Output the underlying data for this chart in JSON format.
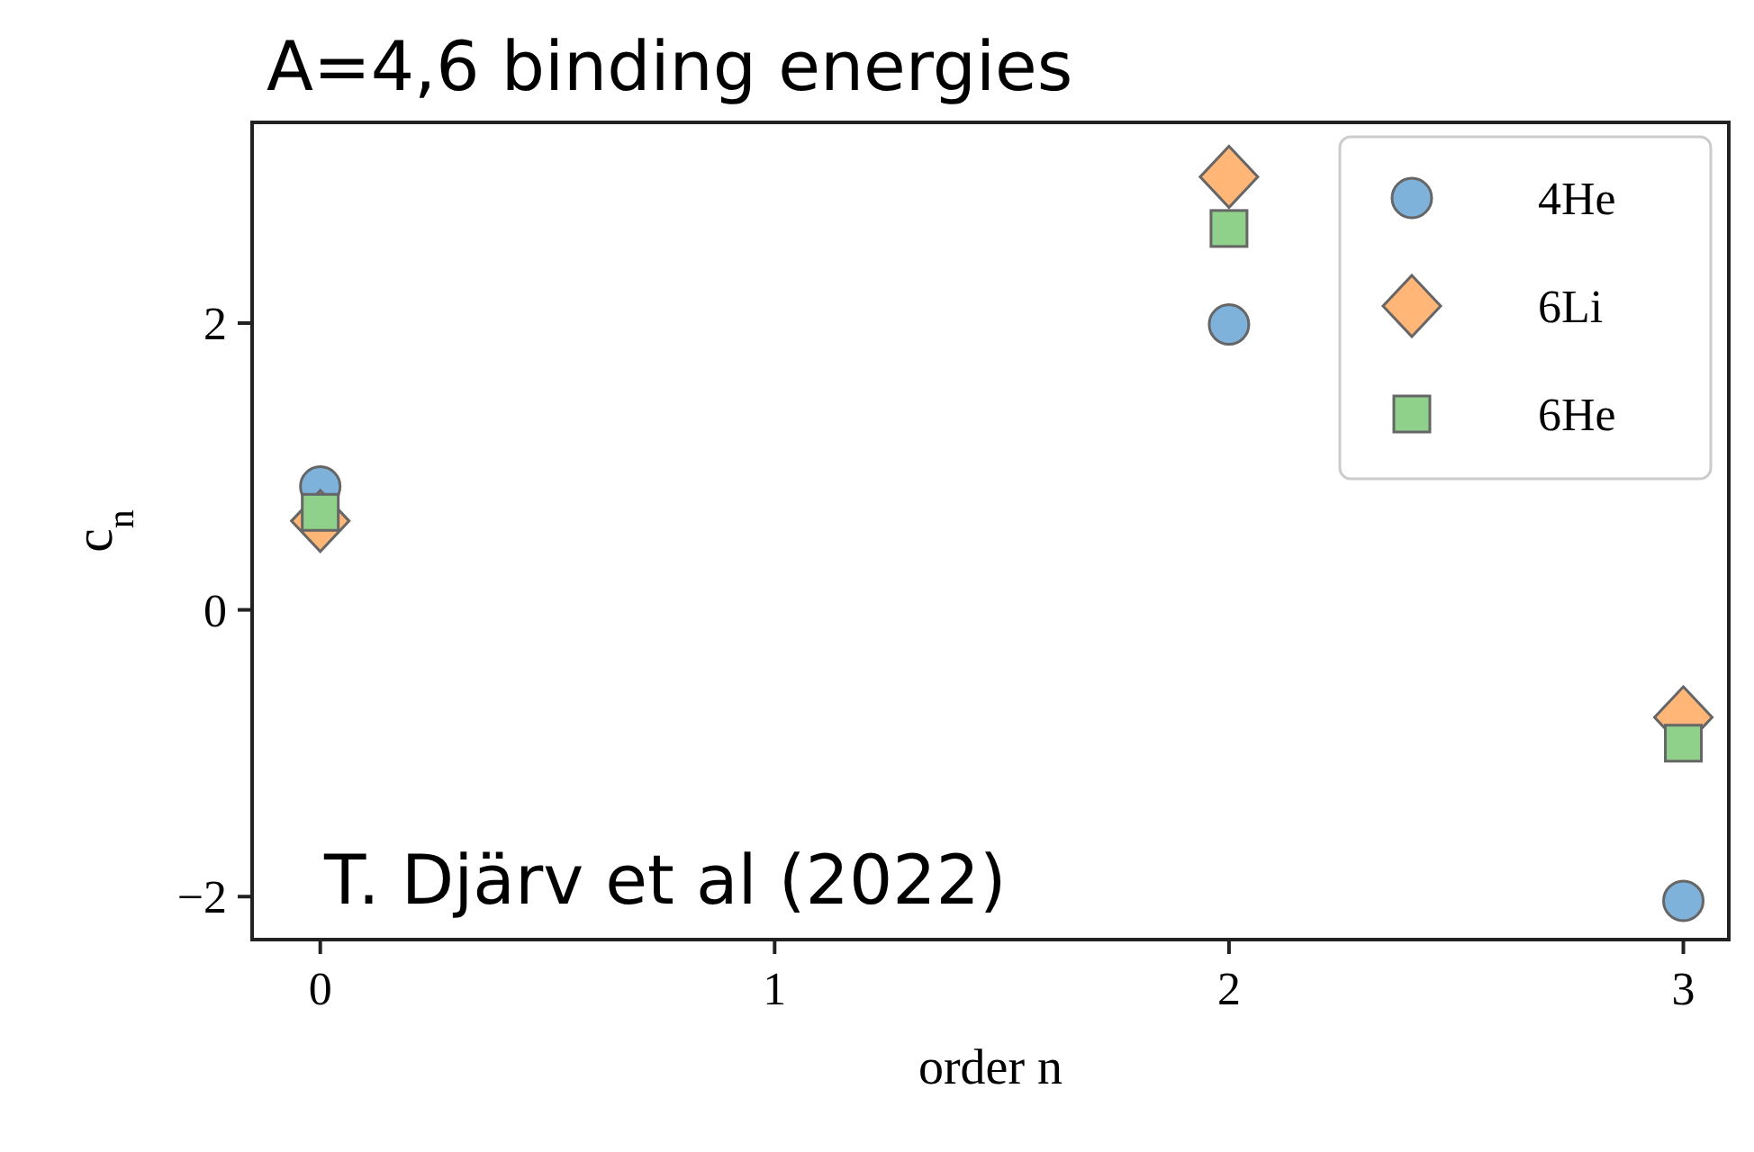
{
  "chart_data": {
    "type": "scatter",
    "title": "A=4,6 binding energies",
    "xlabel": "order n",
    "ylabel": "c$_{n}$",
    "annotations": [
      "T. Djärv et al (2022)"
    ],
    "x": [
      0,
      2,
      3
    ],
    "xlim": [
      -0.15,
      3.1
    ],
    "xticks": [
      0,
      1,
      2,
      3
    ],
    "ylim": [
      -2.3,
      3.4
    ],
    "yticks": [
      {
        "value": -2,
        "label": "−2"
      },
      0,
      2
    ],
    "grid": false,
    "legend": "top right",
    "series": [
      {
        "name": "4He",
        "color": "#7fb2da",
        "marker": "circle",
        "values": [
          0.86,
          1.99,
          -2.03
        ]
      },
      {
        "name": "6Li",
        "color": "#ffb677",
        "marker": "diamond",
        "values": [
          0.62,
          3.02,
          -0.75
        ]
      },
      {
        "name": "6He",
        "color": "#8fd08a",
        "marker": "square",
        "values": [
          0.68,
          2.66,
          -0.93
        ]
      }
    ]
  }
}
